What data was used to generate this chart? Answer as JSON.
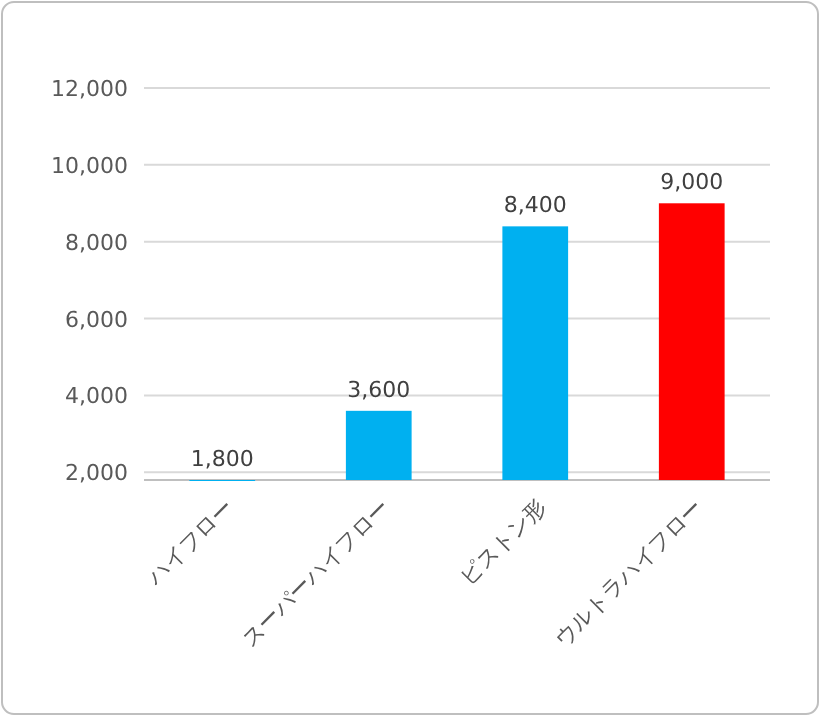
{
  "chart_data": {
    "type": "bar",
    "categories": [
      "ハイフロー",
      "スーパーハイフロー",
      "ピストン形",
      "ウルトラハイフロー"
    ],
    "values": [
      1800,
      3600,
      8400,
      9000
    ],
    "value_labels": [
      "1,800",
      "3,600",
      "8,400",
      "9,000"
    ],
    "colors": [
      "#00b0f0",
      "#00b0f0",
      "#00b0f0",
      "#ff0000"
    ],
    "ylim": [
      1800,
      12000
    ],
    "yticks": [
      {
        "value": 2000,
        "label": "2,000"
      },
      {
        "value": 4000,
        "label": "4,000"
      },
      {
        "value": 6000,
        "label": "6,000"
      },
      {
        "value": 8000,
        "label": "8,000"
      },
      {
        "value": 10000,
        "label": "10,000"
      },
      {
        "value": 12000,
        "label": "12,000"
      }
    ],
    "grid": "y"
  }
}
